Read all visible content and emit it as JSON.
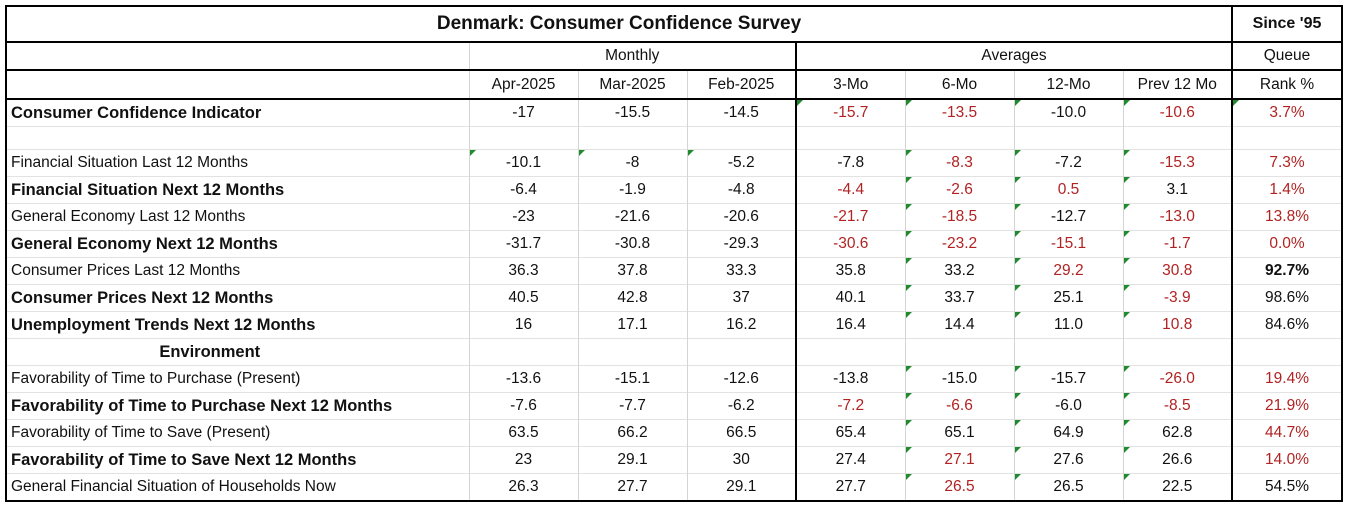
{
  "title": "Denmark: Consumer Confidence Survey",
  "since_label": "Since '95",
  "groups": {
    "monthly": "Monthly",
    "averages": "Averages",
    "queue": "Queue"
  },
  "columns": [
    "Apr-2025",
    "Mar-2025",
    "Feb-2025",
    "3-Mo",
    "6-Mo",
    "12-Mo",
    "Prev 12 Mo",
    "Rank %"
  ],
  "colors": {
    "negative_highlight": "#b22222",
    "border": "#000000",
    "comment_marker": "#1f8a2e"
  },
  "rows": [
    {
      "label": "Consumer Confidence Indicator",
      "bold": true,
      "values": [
        "-17",
        "-15.5",
        "-14.5",
        "-15.7",
        "-13.5",
        "-10.0",
        "-10.6",
        "3.7%"
      ],
      "red": [
        3,
        4,
        6,
        7
      ],
      "markers": [
        3,
        4,
        5,
        6,
        7
      ]
    },
    {
      "label": "",
      "spacer": true
    },
    {
      "label": "Financial Situation Last 12 Months",
      "bold": false,
      "values": [
        "-10.1",
        "-8",
        "-5.2",
        "-7.8",
        "-8.3",
        "-7.2",
        "-15.3",
        "7.3%"
      ],
      "red": [
        4,
        6,
        7
      ],
      "markers": [
        0,
        1,
        2,
        4,
        5,
        6
      ]
    },
    {
      "label": "Financial Situation Next 12 Months",
      "bold": true,
      "values": [
        "-6.4",
        "-1.9",
        "-4.8",
        "-4.4",
        "-2.6",
        "0.5",
        "3.1",
        "1.4%"
      ],
      "red": [
        3,
        4,
        5,
        7
      ],
      "markers": [
        4,
        5,
        6
      ]
    },
    {
      "label": "General Economy Last 12 Months",
      "bold": false,
      "values": [
        "-23",
        "-21.6",
        "-20.6",
        "-21.7",
        "-18.5",
        "-12.7",
        "-13.0",
        "13.8%"
      ],
      "red": [
        3,
        4,
        6,
        7
      ],
      "markers": [
        4,
        5,
        6
      ]
    },
    {
      "label": "General Economy Next 12 Months",
      "bold": true,
      "values": [
        "-31.7",
        "-30.8",
        "-29.3",
        "-30.6",
        "-23.2",
        "-15.1",
        "-1.7",
        "0.0%"
      ],
      "red": [
        3,
        4,
        5,
        6,
        7
      ],
      "markers": [
        4,
        5,
        6
      ]
    },
    {
      "label": "Consumer Prices Last 12 Months",
      "bold": false,
      "values": [
        "36.3",
        "37.8",
        "33.3",
        "35.8",
        "33.2",
        "29.2",
        "30.8",
        "92.7%"
      ],
      "red": [
        5,
        6
      ],
      "bold_values": [
        7
      ],
      "markers": [
        4,
        5,
        6
      ]
    },
    {
      "label": "Consumer Prices  Next 12 Months",
      "bold": true,
      "values": [
        "40.5",
        "42.8",
        "37",
        "40.1",
        "33.7",
        "25.1",
        "-3.9",
        "98.6%"
      ],
      "red": [
        6
      ],
      "markers": [
        4,
        5,
        6
      ]
    },
    {
      "label": "Unemployment Trends Next 12 Months",
      "bold": true,
      "values": [
        "16",
        "17.1",
        "16.2",
        "16.4",
        "14.4",
        "11.0",
        "10.8",
        "84.6%"
      ],
      "red": [
        6
      ],
      "markers": [
        4,
        5,
        6
      ]
    },
    {
      "label": "Environment",
      "env": true
    },
    {
      "label": "Favorability of Time to Purchase (Present)",
      "bold": false,
      "values": [
        "-13.6",
        "-15.1",
        "-12.6",
        "-13.8",
        "-15.0",
        "-15.7",
        "-26.0",
        "19.4%"
      ],
      "red": [
        6,
        7
      ],
      "markers": [
        4,
        5,
        6
      ]
    },
    {
      "label": "Favorability of Time to Purchase Next 12 Months",
      "bold": true,
      "values": [
        "-7.6",
        "-7.7",
        "-6.2",
        "-7.2",
        "-6.6",
        "-6.0",
        "-8.5",
        "21.9%"
      ],
      "red": [
        3,
        4,
        6,
        7
      ],
      "markers": [
        4,
        5,
        6
      ]
    },
    {
      "label": "Favorability of Time to Save (Present)",
      "bold": false,
      "values": [
        "63.5",
        "66.2",
        "66.5",
        "65.4",
        "65.1",
        "64.9",
        "62.8",
        "44.7%"
      ],
      "red": [
        7
      ],
      "markers": [
        4,
        5,
        6
      ]
    },
    {
      "label": "Favorability of Time to Save Next 12 Months",
      "bold": true,
      "values": [
        "23",
        "29.1",
        "30",
        "27.4",
        "27.1",
        "27.6",
        "26.6",
        "14.0%"
      ],
      "red": [
        4,
        7
      ],
      "markers": [
        4,
        5,
        6
      ]
    },
    {
      "label": "General Financial Situation of Households Now",
      "bold": false,
      "values": [
        "26.3",
        "27.7",
        "29.1",
        "27.7",
        "26.5",
        "26.5",
        "22.5",
        "54.5%"
      ],
      "red": [
        4
      ],
      "markers": [
        4,
        5,
        6
      ]
    }
  ]
}
